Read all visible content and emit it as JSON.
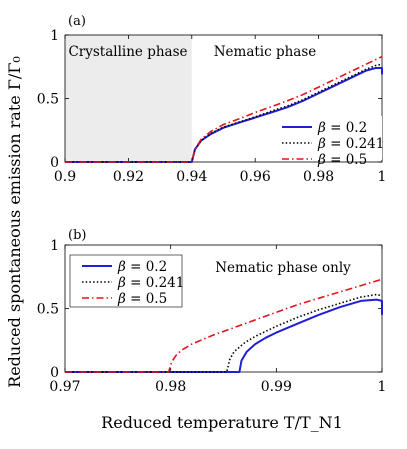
{
  "ylabel": "Reduced spontaneous emission rate Γ/Γ₀",
  "xlabel": "Reduced temperature T/T_N1",
  "colors": {
    "beta_0_2": "#1f1fd8",
    "beta_0_241": "#000000",
    "beta_0_5": "#e0141c",
    "shade": "#ececec"
  },
  "chart_data": [
    {
      "type": "line",
      "panel_label": "(a)",
      "xlim": [
        0.9,
        1.0
      ],
      "ylim": [
        0,
        1
      ],
      "x_ticks": [
        "0.9",
        "0.92",
        "0.94",
        "0.96",
        "0.98",
        "1"
      ],
      "x_tick_values": [
        0.9,
        0.92,
        0.94,
        0.96,
        0.98,
        1.0
      ],
      "y_ticks": [
        "0",
        "0.5",
        "1"
      ],
      "y_tick_values": [
        0,
        0.5,
        1
      ],
      "grid": false,
      "legend_position": "bottom-right",
      "annotations": [
        "Crystalline phase",
        "Nematic phase"
      ],
      "shaded_region": {
        "x": [
          0.9,
          0.94
        ],
        "label": "Crystalline phase"
      },
      "series": [
        {
          "name": "β = 0.2",
          "style": "solid",
          "color": "#1f1fd8",
          "x": [
            0.9,
            0.94,
            0.941,
            0.943,
            0.946,
            0.95,
            0.955,
            0.96,
            0.965,
            0.97,
            0.975,
            0.98,
            0.985,
            0.99,
            0.995,
            0.998,
            1.0,
            1.0
          ],
          "y": [
            0,
            0,
            0.1,
            0.17,
            0.22,
            0.27,
            0.31,
            0.35,
            0.39,
            0.43,
            0.48,
            0.54,
            0.6,
            0.66,
            0.72,
            0.74,
            0.74,
            0.69
          ]
        },
        {
          "name": "β = 0.241",
          "style": "dotted",
          "color": "#000000",
          "x": [
            0.9,
            0.94,
            0.941,
            0.943,
            0.946,
            0.95,
            0.955,
            0.96,
            0.965,
            0.97,
            0.975,
            0.98,
            0.985,
            0.99,
            0.995,
            0.998,
            1.0
          ],
          "y": [
            0,
            0,
            0.1,
            0.17,
            0.225,
            0.275,
            0.315,
            0.355,
            0.4,
            0.44,
            0.49,
            0.55,
            0.61,
            0.67,
            0.73,
            0.76,
            0.77
          ]
        },
        {
          "name": "β = 0.5",
          "style": "dashdot",
          "color": "#e0141c",
          "x": [
            0.9,
            0.94,
            0.941,
            0.943,
            0.946,
            0.95,
            0.955,
            0.96,
            0.965,
            0.97,
            0.975,
            0.98,
            0.985,
            0.99,
            0.995,
            1.0
          ],
          "y": [
            0,
            0,
            0.1,
            0.18,
            0.24,
            0.295,
            0.34,
            0.39,
            0.435,
            0.48,
            0.53,
            0.59,
            0.65,
            0.71,
            0.77,
            0.83
          ]
        }
      ]
    },
    {
      "type": "line",
      "panel_label": "(b)",
      "xlim": [
        0.97,
        1.0
      ],
      "ylim": [
        0,
        1
      ],
      "x_ticks": [
        "0.97",
        "0.98",
        "0.99",
        "1"
      ],
      "x_tick_values": [
        0.97,
        0.98,
        0.99,
        1.0
      ],
      "y_ticks": [
        "0",
        "0.5",
        "1"
      ],
      "y_tick_values": [
        0,
        0.5,
        1
      ],
      "grid": false,
      "legend_position": "top-left",
      "annotations": [
        "Nematic phase only"
      ],
      "series": [
        {
          "name": "β = 0.2",
          "style": "solid",
          "color": "#1f1fd8",
          "x": [
            0.97,
            0.9865,
            0.9867,
            0.9872,
            0.988,
            0.989,
            0.99,
            0.992,
            0.994,
            0.996,
            0.998,
            0.9995,
            1.0,
            1.0
          ],
          "y": [
            0,
            0,
            0.09,
            0.16,
            0.22,
            0.27,
            0.31,
            0.38,
            0.45,
            0.51,
            0.56,
            0.57,
            0.56,
            0.45
          ]
        },
        {
          "name": "β = 0.241",
          "style": "dotted",
          "color": "#000000",
          "x": [
            0.97,
            0.9853,
            0.9856,
            0.986,
            0.987,
            0.988,
            0.99,
            0.992,
            0.994,
            0.996,
            0.998,
            0.9995,
            1.0
          ],
          "y": [
            0,
            0,
            0.1,
            0.16,
            0.23,
            0.28,
            0.36,
            0.43,
            0.49,
            0.54,
            0.59,
            0.61,
            0.6
          ]
        },
        {
          "name": "β = 0.5",
          "style": "dashdot",
          "color": "#e0141c",
          "x": [
            0.97,
            0.9798,
            0.9801,
            0.9805,
            0.981,
            0.982,
            0.984,
            0.986,
            0.988,
            0.99,
            0.992,
            0.994,
            0.996,
            0.998,
            1.0
          ],
          "y": [
            0,
            0,
            0.08,
            0.13,
            0.17,
            0.22,
            0.29,
            0.35,
            0.41,
            0.47,
            0.53,
            0.58,
            0.63,
            0.68,
            0.73
          ]
        }
      ]
    }
  ]
}
